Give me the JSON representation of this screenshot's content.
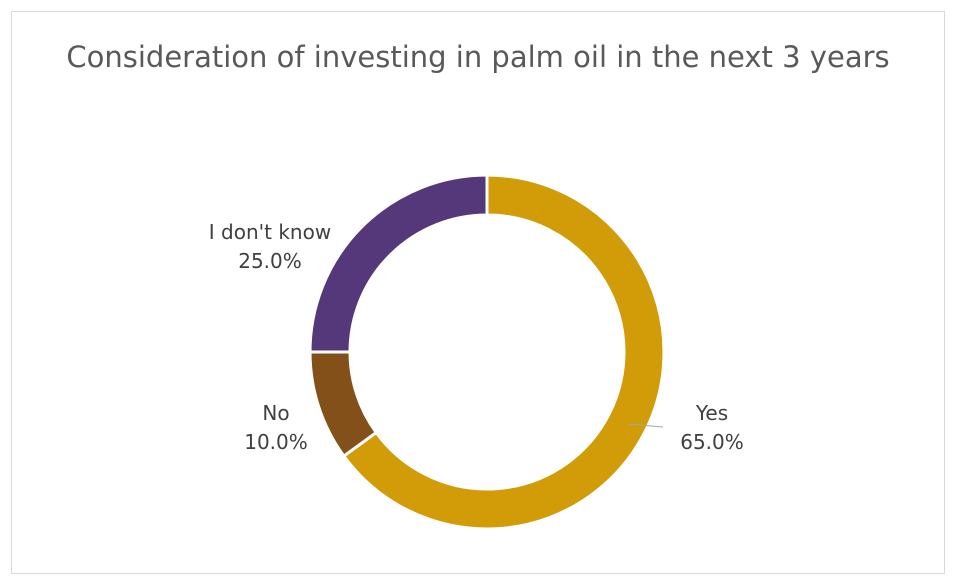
{
  "chart_data": {
    "type": "pie",
    "title": "Consideration of investing in palm oil in the next 3 years",
    "slices": [
      {
        "label": "Yes",
        "value": 65.0,
        "value_label": "65.0%",
        "color": "#D29C08"
      },
      {
        "label": "No",
        "value": 10.0,
        "value_label": "10.0%",
        "color": "#84501A"
      },
      {
        "label": "I don't know",
        "value": 25.0,
        "value_label": "25.0%",
        "color": "#553879"
      }
    ],
    "donut": true,
    "start_angle": "top",
    "direction": "clockwise",
    "legend": "none"
  }
}
